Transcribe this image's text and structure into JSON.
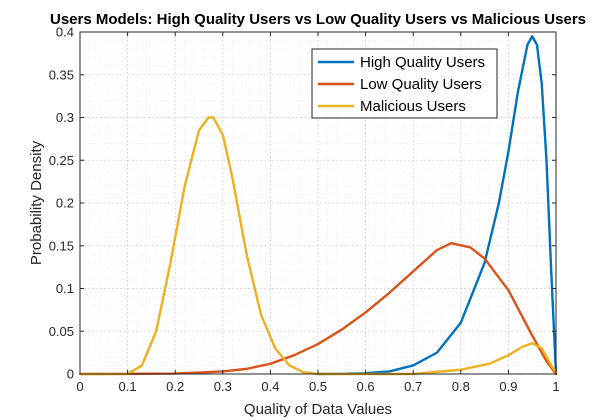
{
  "chart_data": {
    "type": "line",
    "title": "Users Models: High Quality Users vs Low Quality Users vs Malicious Users",
    "xlabel": "Quality of Data Values",
    "ylabel": "Probability Density",
    "xlim": [
      0,
      1
    ],
    "ylim": [
      0,
      0.4
    ],
    "xticks": [
      "0",
      "0.1",
      "0.2",
      "0.3",
      "0.4",
      "0.5",
      "0.6",
      "0.7",
      "0.8",
      "0.9",
      "1"
    ],
    "yticks": [
      "0",
      "0.05",
      "0.1",
      "0.15",
      "0.2",
      "0.25",
      "0.3",
      "0.35",
      "0.4"
    ],
    "grid": true,
    "minor_grid": true,
    "legend_position": "top-right",
    "series": [
      {
        "name": "High Quality Users",
        "color": "#0072BD",
        "x": [
          0.5,
          0.55,
          0.6,
          0.65,
          0.7,
          0.75,
          0.8,
          0.85,
          0.88,
          0.9,
          0.92,
          0.94,
          0.95,
          0.96,
          0.97,
          0.98,
          0.99,
          0.995,
          1.0
        ],
        "y": [
          0.0,
          0.0002,
          0.001,
          0.003,
          0.01,
          0.025,
          0.06,
          0.13,
          0.2,
          0.26,
          0.33,
          0.385,
          0.395,
          0.385,
          0.34,
          0.25,
          0.12,
          0.06,
          0.0
        ]
      },
      {
        "name": "Low Quality Users",
        "color": "#D95319",
        "x": [
          0.0,
          0.2,
          0.3,
          0.35,
          0.4,
          0.45,
          0.5,
          0.55,
          0.6,
          0.65,
          0.7,
          0.75,
          0.78,
          0.82,
          0.85,
          0.9,
          0.95,
          0.98,
          1.0
        ],
        "y": [
          0.0,
          0.0005,
          0.003,
          0.006,
          0.012,
          0.022,
          0.035,
          0.052,
          0.072,
          0.095,
          0.12,
          0.145,
          0.153,
          0.148,
          0.135,
          0.098,
          0.045,
          0.015,
          0.0
        ]
      },
      {
        "name": "Malicious Users",
        "color": "#EDB120",
        "x": [
          0.0,
          0.1,
          0.13,
          0.16,
          0.19,
          0.22,
          0.25,
          0.27,
          0.28,
          0.3,
          0.32,
          0.35,
          0.38,
          0.41,
          0.44,
          0.47,
          0.5,
          0.6,
          0.7,
          0.8,
          0.86,
          0.9,
          0.93,
          0.95,
          0.97,
          0.99,
          1.0
        ],
        "y": [
          0.0,
          0.0,
          0.01,
          0.05,
          0.13,
          0.22,
          0.285,
          0.3,
          0.3,
          0.28,
          0.23,
          0.14,
          0.07,
          0.03,
          0.01,
          0.002,
          0.0,
          0.0,
          0.0,
          0.005,
          0.012,
          0.022,
          0.032,
          0.036,
          0.03,
          0.01,
          0.002
        ]
      }
    ]
  }
}
